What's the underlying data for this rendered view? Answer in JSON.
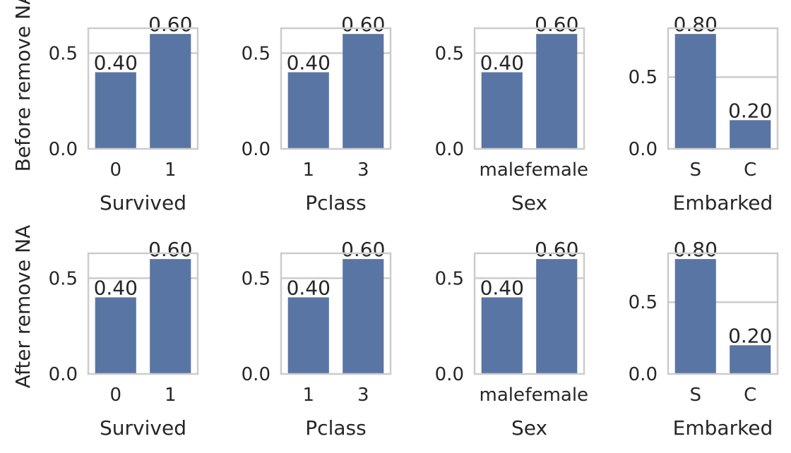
{
  "chart_data": [
    {
      "type": "bar",
      "row_label": "Before remove NA",
      "categories": [
        "0",
        "1"
      ],
      "values": [
        0.4,
        0.6
      ],
      "value_labels": [
        "0.40",
        "0.60"
      ],
      "xlabel": "Survived",
      "ylim": [
        0,
        0.63
      ],
      "yticks": [
        0.0,
        0.5
      ],
      "ytick_labels": [
        "0.0",
        "0.5"
      ],
      "grid": true,
      "color": "#5975a4"
    },
    {
      "type": "bar",
      "categories": [
        "1",
        "3"
      ],
      "values": [
        0.4,
        0.6
      ],
      "value_labels": [
        "0.40",
        "0.60"
      ],
      "xlabel": "Pclass",
      "ylim": [
        0,
        0.63
      ],
      "yticks": [
        0.0,
        0.5
      ],
      "ytick_labels": [
        "0.0",
        "0.5"
      ],
      "grid": true,
      "color": "#5975a4"
    },
    {
      "type": "bar",
      "categories": [
        "male",
        "female"
      ],
      "values": [
        0.4,
        0.6
      ],
      "value_labels": [
        "0.40",
        "0.60"
      ],
      "xlabel": "Sex",
      "ylim": [
        0,
        0.63
      ],
      "yticks": [
        0.0,
        0.5
      ],
      "ytick_labels": [
        "0.0",
        "0.5"
      ],
      "grid": true,
      "color": "#5975a4"
    },
    {
      "type": "bar",
      "categories": [
        "S",
        "C"
      ],
      "values": [
        0.8,
        0.2
      ],
      "value_labels": [
        "0.80",
        "0.20"
      ],
      "xlabel": "Embarked",
      "ylim": [
        0,
        0.84
      ],
      "yticks": [
        0.0,
        0.5
      ],
      "ytick_labels": [
        "0.0",
        "0.5"
      ],
      "grid": true,
      "color": "#5975a4"
    },
    {
      "type": "bar",
      "row_label": "After remove NA",
      "categories": [
        "0",
        "1"
      ],
      "values": [
        0.4,
        0.6
      ],
      "value_labels": [
        "0.40",
        "0.60"
      ],
      "xlabel": "Survived",
      "ylim": [
        0,
        0.63
      ],
      "yticks": [
        0.0,
        0.5
      ],
      "ytick_labels": [
        "0.0",
        "0.5"
      ],
      "grid": true,
      "color": "#5975a4"
    },
    {
      "type": "bar",
      "categories": [
        "1",
        "3"
      ],
      "values": [
        0.4,
        0.6
      ],
      "value_labels": [
        "0.40",
        "0.60"
      ],
      "xlabel": "Pclass",
      "ylim": [
        0,
        0.63
      ],
      "yticks": [
        0.0,
        0.5
      ],
      "ytick_labels": [
        "0.0",
        "0.5"
      ],
      "grid": true,
      "color": "#5975a4"
    },
    {
      "type": "bar",
      "categories": [
        "male",
        "female"
      ],
      "values": [
        0.4,
        0.6
      ],
      "value_labels": [
        "0.40",
        "0.60"
      ],
      "xlabel": "Sex",
      "ylim": [
        0,
        0.63
      ],
      "yticks": [
        0.0,
        0.5
      ],
      "ytick_labels": [
        "0.0",
        "0.5"
      ],
      "grid": true,
      "color": "#5975a4"
    },
    {
      "type": "bar",
      "categories": [
        "S",
        "C"
      ],
      "values": [
        0.8,
        0.2
      ],
      "value_labels": [
        "0.80",
        "0.20"
      ],
      "xlabel": "Embarked",
      "ylim": [
        0,
        0.84
      ],
      "yticks": [
        0.0,
        0.5
      ],
      "ytick_labels": [
        "0.0",
        "0.5"
      ],
      "grid": true,
      "color": "#5975a4"
    }
  ]
}
